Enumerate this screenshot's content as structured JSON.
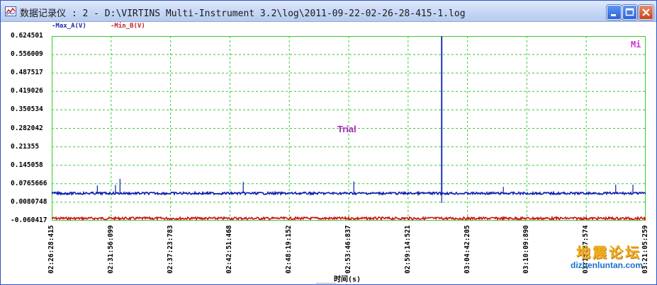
{
  "window": {
    "title": "数据记录仪 : 2 - D:\\VIRTINS Multi-Instrument 3.2\\log\\2011-09-22-02-26-28-415-1.log",
    "app_icon": "chart-app-icon",
    "buttons": {
      "minimize": "minimize-icon",
      "maximize": "maximize-icon",
      "close": "close-icon"
    }
  },
  "legend": {
    "a": "-Max_A(V)",
    "b": "-Min_B(V)"
  },
  "overlay": {
    "trial": "Trial",
    "corner": "Mi"
  },
  "watermark": {
    "cn": "地震论坛",
    "url": "dizhenluntan.com"
  },
  "colors": {
    "series_a": "#0a1fa8",
    "series_b": "#d01010",
    "grid": "#33cc33",
    "trial": "#b027c0"
  },
  "chart_data": {
    "type": "line",
    "xlabel": "时间(s)",
    "ylabel": "",
    "y_ticks": [
      "0.624501",
      "0.556009",
      "0.487517",
      "0.419026",
      "0.350534",
      "0.282042",
      "0.21355",
      "0.145058",
      "0.0765666",
      "0.0080748",
      "-0.060417"
    ],
    "x_ticks": [
      "02:26:28:415",
      "02:31:56:099",
      "02:37:23:783",
      "02:42:51:468",
      "02:48:19:152",
      "02:53:46:837",
      "02:59:14:521",
      "03:04:42:205",
      "03:10:09:890",
      "03:15:37:574",
      "03:21:05:259"
    ],
    "ylim": [
      -0.060417,
      0.624501
    ],
    "xlim": [
      "02:26:28:415",
      "03:21:05:259"
    ],
    "grid": true,
    "legend_position": "top-left",
    "series": [
      {
        "name": "Max_A(V)",
        "baseline": 0.041,
        "spikes": [
          {
            "x": "02:30:40",
            "y": 0.07
          },
          {
            "x": "02:32:20",
            "y": 0.072
          },
          {
            "x": "02:32:45",
            "y": 0.095
          },
          {
            "x": "02:44:05",
            "y": 0.083
          },
          {
            "x": "02:54:15",
            "y": 0.085
          },
          {
            "x": "03:02:20",
            "y": 0.624
          },
          {
            "x": "03:02:20",
            "y": 0.005
          },
          {
            "x": "03:08:00",
            "y": 0.065
          },
          {
            "x": "03:18:20",
            "y": 0.073
          },
          {
            "x": "03:19:55",
            "y": 0.073
          }
        ]
      },
      {
        "name": "Min_B(V)",
        "baseline": -0.052
      }
    ]
  }
}
